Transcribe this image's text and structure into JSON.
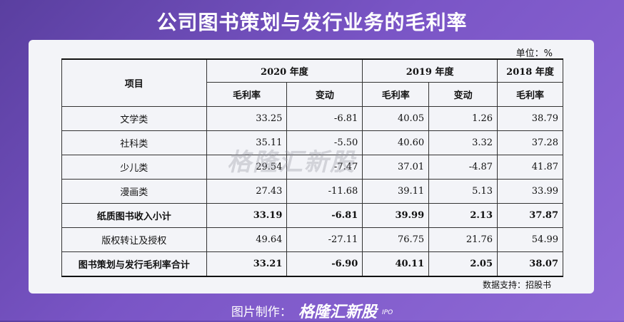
{
  "title": "公司图书策划与发行业务的毛利率",
  "unit": "单位：%",
  "header": {
    "item": "项目",
    "year_2020": "2020 年度",
    "year_2019": "2019 年度",
    "year_2018": "2018 年度",
    "margin": "毛利率",
    "change": "变动"
  },
  "rows": [
    {
      "name": "文学类",
      "m2020": "33.25",
      "c2020": "-6.81",
      "m2019": "40.05",
      "c2019": "1.26",
      "m2018": "38.79"
    },
    {
      "name": "社科类",
      "m2020": "35.11",
      "c2020": "-5.50",
      "m2019": "40.60",
      "c2019": "3.32",
      "m2018": "37.28"
    },
    {
      "name": "少儿类",
      "m2020": "29.54",
      "c2020": "-7.47",
      "m2019": "37.01",
      "c2019": "-4.87",
      "m2018": "41.87"
    },
    {
      "name": "漫画类",
      "m2020": "27.43",
      "c2020": "-11.68",
      "m2019": "39.11",
      "c2019": "5.13",
      "m2018": "33.99"
    },
    {
      "name": "纸质图书收入小计",
      "m2020": "33.19",
      "c2020": "-6.81",
      "m2019": "39.99",
      "c2019": "2.13",
      "m2018": "37.87"
    },
    {
      "name": "版权转让及授权",
      "m2020": "49.64",
      "c2020": "-27.11",
      "m2019": "76.75",
      "c2019": "21.76",
      "m2018": "54.99"
    },
    {
      "name": "图书策划与发行毛利率合计",
      "m2020": "33.21",
      "c2020": "-6.90",
      "m2019": "40.11",
      "c2019": "2.05",
      "m2018": "38.07"
    }
  ],
  "source": "数据支持：招股书",
  "watermark": "格隆汇新股",
  "footer": {
    "label": "图片制作：",
    "brand": "格隆汇新股",
    "suffix": "IPO"
  }
}
